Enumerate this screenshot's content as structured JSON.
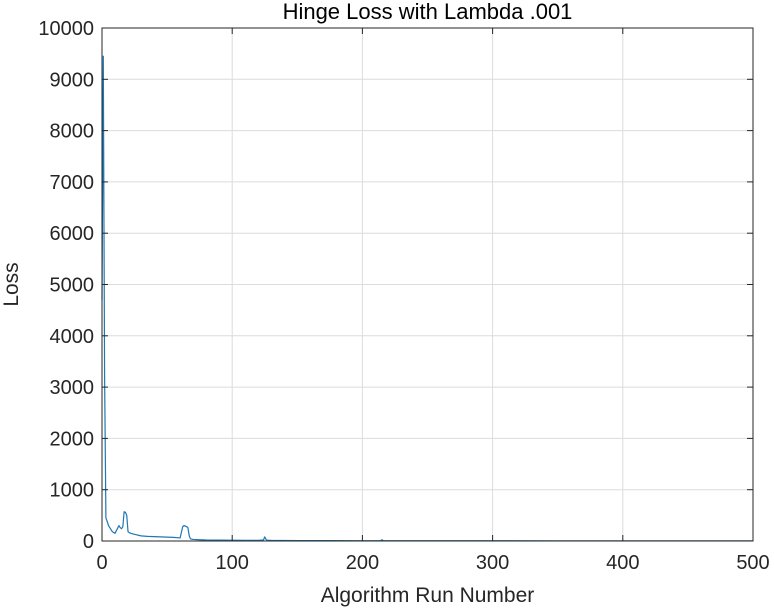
{
  "chart_data": {
    "type": "line",
    "title": "Hinge Loss with Lambda .001",
    "xlabel": "Algorithm Run Number",
    "ylabel": "Loss",
    "xlim": [
      0,
      500
    ],
    "ylim": [
      0,
      10000
    ],
    "xticks": [
      "0",
      "100",
      "200",
      "300",
      "400",
      "500"
    ],
    "yticks": [
      "0",
      "1000",
      "2000",
      "3000",
      "4000",
      "5000",
      "6000",
      "7000",
      "8000",
      "9000",
      "10000"
    ],
    "grid": true,
    "colors": {
      "line": "#1f77b4",
      "grid": "#dcdcdc",
      "axis": "#262626"
    },
    "series": [
      {
        "x": [
          0,
          1,
          2,
          3,
          4,
          5,
          6,
          8,
          10,
          12,
          13,
          14,
          15,
          16,
          17,
          18,
          19,
          20,
          22,
          25,
          30,
          35,
          40,
          45,
          50,
          55,
          60,
          62,
          63,
          64,
          65,
          66,
          67,
          68,
          70,
          75,
          80,
          90,
          100,
          110,
          120,
          124,
          125,
          126,
          127,
          130,
          140,
          150,
          175,
          200,
          214,
          215,
          216,
          220,
          250,
          300,
          350,
          400,
          450,
          500
        ],
        "y": [
          4700,
          9450,
          3200,
          450,
          380,
          300,
          260,
          180,
          150,
          250,
          300,
          260,
          240,
          280,
          570,
          560,
          500,
          180,
          150,
          130,
          100,
          90,
          85,
          80,
          75,
          70,
          60,
          280,
          300,
          290,
          280,
          260,
          100,
          40,
          30,
          25,
          20,
          18,
          15,
          12,
          12,
          20,
          80,
          30,
          15,
          12,
          10,
          8,
          8,
          6,
          6,
          25,
          8,
          6,
          5,
          5,
          4,
          4,
          4,
          4
        ]
      }
    ]
  }
}
